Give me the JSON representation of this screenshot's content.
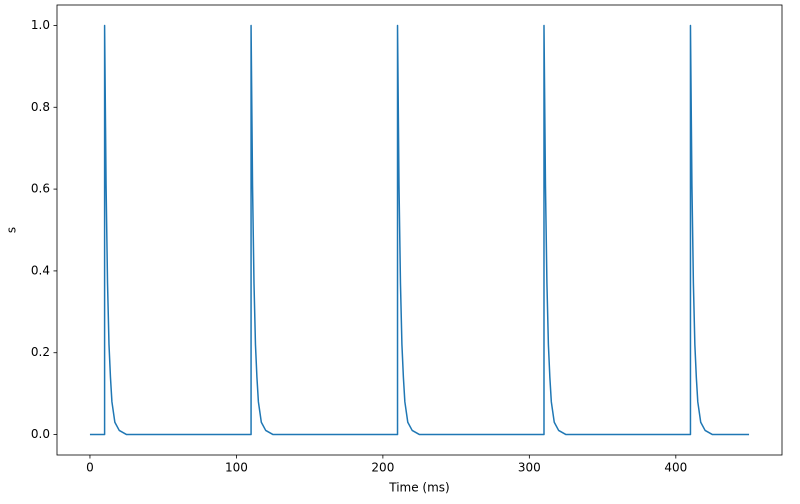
{
  "chart_data": {
    "type": "line",
    "xlabel": "Time (ms)",
    "ylabel": "s",
    "x": [
      0,
      10,
      10,
      11,
      12,
      13,
      14,
      15,
      17,
      20,
      25,
      110,
      110,
      111,
      112,
      113,
      114,
      115,
      117,
      120,
      125,
      210,
      210,
      211,
      212,
      213,
      214,
      215,
      217,
      220,
      225,
      310,
      310,
      311,
      312,
      313,
      314,
      315,
      317,
      320,
      325,
      410,
      410,
      411,
      412,
      413,
      414,
      415,
      417,
      420,
      425,
      450
    ],
    "values": [
      0,
      0,
      1.0,
      0.61,
      0.37,
      0.22,
      0.14,
      0.08,
      0.03,
      0.01,
      0,
      0,
      1.0,
      0.61,
      0.37,
      0.22,
      0.14,
      0.08,
      0.03,
      0.01,
      0,
      0,
      1.0,
      0.61,
      0.37,
      0.22,
      0.14,
      0.08,
      0.03,
      0.01,
      0,
      0,
      1.0,
      0.61,
      0.37,
      0.22,
      0.14,
      0.08,
      0.03,
      0.01,
      0,
      0,
      1.0,
      0.61,
      0.37,
      0.22,
      0.14,
      0.08,
      0.03,
      0.01,
      0,
      0
    ],
    "color": "#1f77b4",
    "xlim": [
      -22.5,
      472.5
    ],
    "xticks": [
      0,
      100,
      200,
      300,
      400
    ],
    "ylim": [
      -0.05,
      1.05
    ],
    "yticks": [
      {
        "value": 0,
        "label": "0.0"
      },
      0.2,
      0.4,
      0.6,
      0.8,
      {
        "value": 1,
        "label": "1.0"
      }
    ],
    "grid": false
  }
}
